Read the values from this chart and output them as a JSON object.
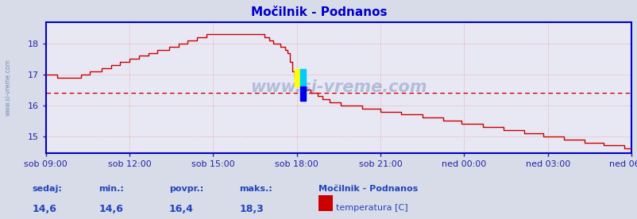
{
  "title": "Močilnik - Podnanos",
  "bg_color": "#d8dce8",
  "plot_bg_color": "#e8e8f4",
  "grid_color": "#e8a0a0",
  "line_color": "#cc0000",
  "avg_line_color": "#cc0000",
  "avg_value": 16.4,
  "y_min": 14.45,
  "y_max": 18.7,
  "y_ticks": [
    15,
    16,
    17,
    18
  ],
  "x_tick_labels": [
    "sob 09:00",
    "sob 12:00",
    "sob 15:00",
    "sob 18:00",
    "sob 21:00",
    "ned 00:00",
    "ned 03:00",
    "ned 06:00"
  ],
  "x_tick_positions": [
    0,
    36,
    72,
    108,
    144,
    180,
    216,
    252
  ],
  "total_points": 252,
  "sedaj": "14,6",
  "min_val": "14,6",
  "povpr": "16,4",
  "maks": "18,3",
  "station": "Močilnik - Podnanos",
  "legend_label": "temperatura [C]",
  "watermark": "www.si-vreme.com",
  "title_color": "#0000cc",
  "label_color": "#2222aa",
  "axis_color": "#0000cc",
  "stats_label_color": "#2244bb",
  "stats_value_color": "#2244bb"
}
